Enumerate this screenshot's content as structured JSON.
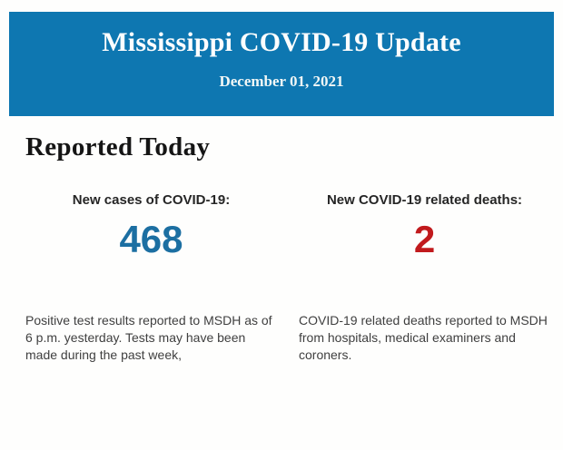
{
  "colors": {
    "page_bg": "#fefefd",
    "header_bg": "#0e77b1",
    "header_text": "#fdfefe",
    "date_text": "#f2f7f6",
    "heading_text": "#151515",
    "label_text": "#262626",
    "cases_value": "#1c6fa2",
    "deaths_value": "#c11a1d",
    "body_text": "#3f3f3f"
  },
  "header": {
    "title": "Mississippi COVID-19 Update",
    "date": "December 01, 2021"
  },
  "report": {
    "heading": "Reported Today",
    "stats": [
      {
        "label": "New cases of COVID-19:",
        "value": "468",
        "description": "Positive test results reported to MSDH as of 6 p.m. yesterday. Tests may have been made during the past week,"
      },
      {
        "label": "New COVID-19 related deaths:",
        "value": "2",
        "description": "COVID-19 related deaths reported to MSDH from hospitals, medical examiners and coroners."
      }
    ]
  }
}
